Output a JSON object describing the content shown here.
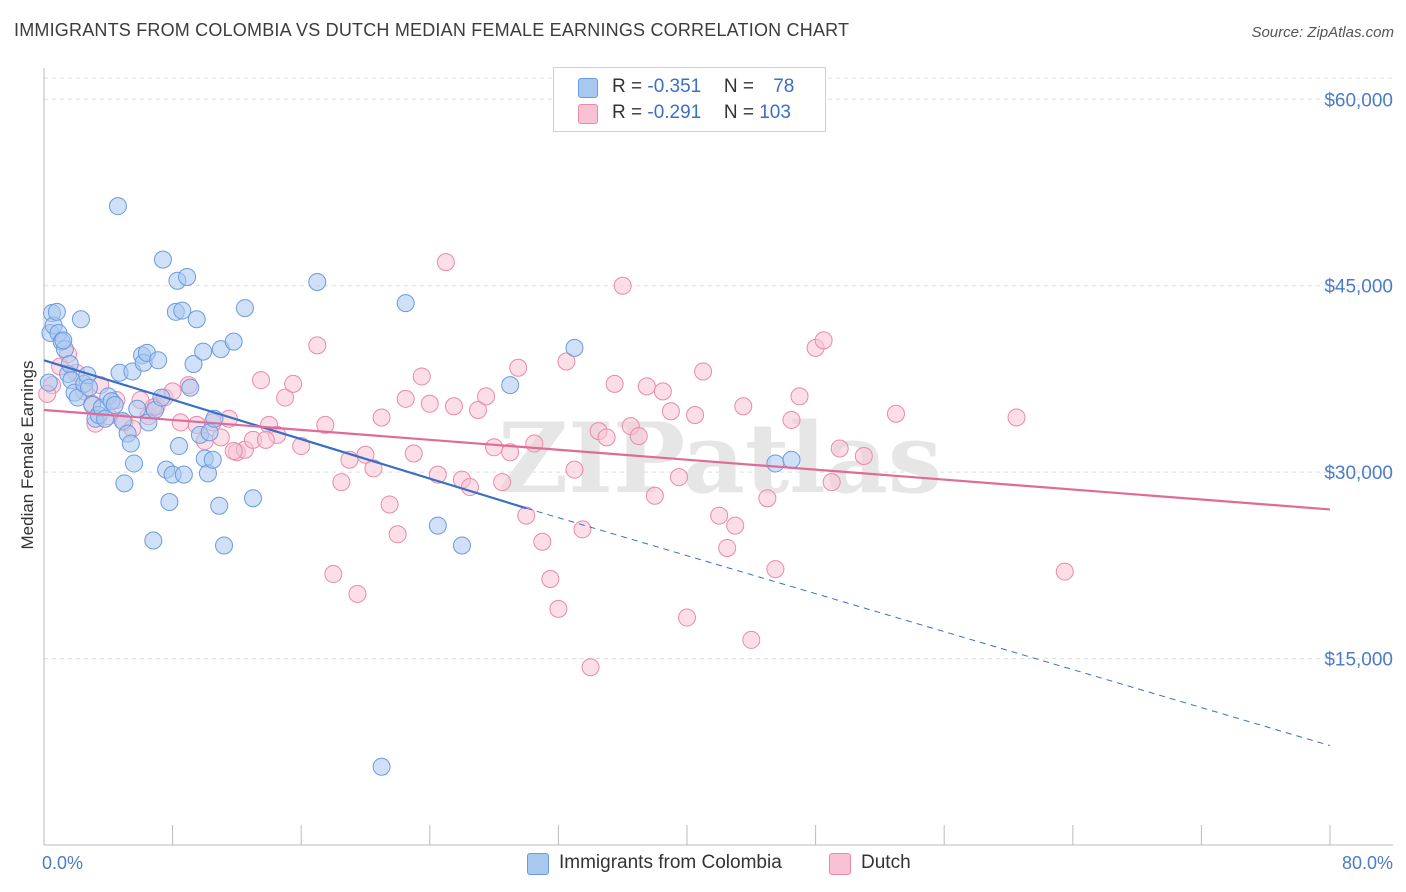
{
  "header": {
    "title": "IMMIGRANTS FROM COLOMBIA VS DUTCH MEDIAN FEMALE EARNINGS CORRELATION CHART",
    "source": "Source: ZipAtlas.com"
  },
  "watermark": "ZIPatlas",
  "legend": {
    "rows": [
      {
        "r_label": "R = ",
        "r_value": "-0.351",
        "n_label": "N = ",
        "n_value": "78",
        "color": "#a9c8f0",
        "border": "#6a9be0"
      },
      {
        "r_label": "R = ",
        "r_value": "-0.291",
        "n_label": "N = ",
        "n_value": "103",
        "color": "#f9c2d4",
        "border": "#e98aab"
      }
    ]
  },
  "bottom_legend": [
    {
      "label": "Immigrants from Colombia",
      "color": "#a9c8f0",
      "border": "#6a9be0"
    },
    {
      "label": "Dutch",
      "color": "#f9c2d4",
      "border": "#e98aab"
    }
  ],
  "chart_data": {
    "type": "scatter",
    "title": "IMMIGRANTS FROM COLOMBIA VS DUTCH MEDIAN FEMALE EARNINGS CORRELATION CHART",
    "xlabel": "",
    "ylabel": "Median Female Earnings",
    "xlim": [
      0,
      80
    ],
    "ylim": [
      0,
      63000
    ],
    "x_tick_labels": [
      {
        "value": 0,
        "label": "0.0%"
      },
      {
        "value": 80,
        "label": "80.0%"
      }
    ],
    "y_ticks": [
      {
        "value": 15000,
        "label": "$15,000"
      },
      {
        "value": 30000,
        "label": "$30,000"
      },
      {
        "value": 45000,
        "label": "$45,000"
      },
      {
        "value": 60000,
        "label": "$60,000"
      }
    ],
    "grid": true,
    "series": [
      {
        "name": "Immigrants from Colombia",
        "color": "#6a9be0",
        "fill": "#a9c8f0",
        "trend": {
          "x1": 0,
          "y1": 39000,
          "x2": 30,
          "y2": 27100,
          "dashed_to_x": 80,
          "dashed_to_y": 8000,
          "color": "#3a6fc4"
        },
        "points": [
          [
            0.3,
            37200
          ],
          [
            0.4,
            41200
          ],
          [
            0.5,
            42800
          ],
          [
            0.6,
            41800
          ],
          [
            0.8,
            42900
          ],
          [
            0.9,
            41200
          ],
          [
            1.1,
            40500
          ],
          [
            1.3,
            39900
          ],
          [
            1.5,
            37900
          ],
          [
            1.6,
            38700
          ],
          [
            1.7,
            37400
          ],
          [
            1.9,
            36400
          ],
          [
            2.1,
            36000
          ],
          [
            2.3,
            42300
          ],
          [
            2.5,
            37100
          ],
          [
            2.7,
            37800
          ],
          [
            2.8,
            36800
          ],
          [
            3.0,
            35400
          ],
          [
            3.2,
            34300
          ],
          [
            3.4,
            34600
          ],
          [
            3.6,
            35200
          ],
          [
            3.8,
            34300
          ],
          [
            4.0,
            36100
          ],
          [
            4.2,
            35700
          ],
          [
            4.4,
            35400
          ],
          [
            4.6,
            51400
          ],
          [
            4.7,
            38000
          ],
          [
            4.9,
            34100
          ],
          [
            5.0,
            29100
          ],
          [
            5.2,
            33100
          ],
          [
            5.4,
            32300
          ],
          [
            5.5,
            38100
          ],
          [
            5.6,
            30700
          ],
          [
            5.8,
            35100
          ],
          [
            6.1,
            39400
          ],
          [
            6.2,
            38800
          ],
          [
            6.4,
            39600
          ],
          [
            6.5,
            34000
          ],
          [
            6.8,
            24500
          ],
          [
            6.9,
            35000
          ],
          [
            7.1,
            39000
          ],
          [
            7.3,
            36000
          ],
          [
            7.4,
            47100
          ],
          [
            7.6,
            30200
          ],
          [
            7.8,
            27600
          ],
          [
            8.0,
            29800
          ],
          [
            8.2,
            42900
          ],
          [
            8.3,
            45400
          ],
          [
            8.4,
            32100
          ],
          [
            8.6,
            43000
          ],
          [
            8.7,
            29800
          ],
          [
            8.9,
            45700
          ],
          [
            9.1,
            36800
          ],
          [
            9.3,
            38700
          ],
          [
            9.5,
            42300
          ],
          [
            9.7,
            33000
          ],
          [
            9.9,
            39700
          ],
          [
            10.0,
            31100
          ],
          [
            10.2,
            29900
          ],
          [
            10.3,
            33200
          ],
          [
            10.5,
            31000
          ],
          [
            10.6,
            34300
          ],
          [
            10.9,
            27300
          ],
          [
            11.0,
            39900
          ],
          [
            11.2,
            24100
          ],
          [
            11.8,
            40500
          ],
          [
            12.5,
            43200
          ],
          [
            13.0,
            27900
          ],
          [
            17.0,
            45300
          ],
          [
            21.0,
            6300
          ],
          [
            22.5,
            43600
          ],
          [
            24.5,
            25700
          ],
          [
            26.0,
            24100
          ],
          [
            29.0,
            37000
          ],
          [
            33.0,
            40000
          ],
          [
            45.5,
            30700
          ],
          [
            46.5,
            31000
          ],
          [
            1.2,
            40600
          ]
        ]
      },
      {
        "name": "Dutch",
        "color": "#e98aab",
        "fill": "#f9c2d4",
        "trend": {
          "x1": 0,
          "y1": 35000,
          "x2": 80,
          "y2": 27000,
          "color": "#e06b98"
        },
        "points": [
          [
            0.5,
            37000
          ],
          [
            1.0,
            38500
          ],
          [
            1.5,
            39500
          ],
          [
            2.0,
            38000
          ],
          [
            2.5,
            36500
          ],
          [
            3.0,
            35500
          ],
          [
            3.5,
            37000
          ],
          [
            4.0,
            34500
          ],
          [
            4.5,
            35800
          ],
          [
            5.0,
            34000
          ],
          [
            5.5,
            33500
          ],
          [
            6.0,
            35800
          ],
          [
            6.5,
            34500
          ],
          [
            7.0,
            35300
          ],
          [
            7.5,
            36000
          ],
          [
            8.0,
            36500
          ],
          [
            8.5,
            34000
          ],
          [
            9.0,
            37000
          ],
          [
            9.5,
            33800
          ],
          [
            10.0,
            32500
          ],
          [
            10.5,
            34000
          ],
          [
            11.0,
            32800
          ],
          [
            11.5,
            34300
          ],
          [
            12.0,
            31600
          ],
          [
            12.5,
            31800
          ],
          [
            13.0,
            32600
          ],
          [
            13.5,
            37400
          ],
          [
            14.0,
            33800
          ],
          [
            14.5,
            33000
          ],
          [
            15.0,
            36000
          ],
          [
            15.5,
            37100
          ],
          [
            16.0,
            32100
          ],
          [
            17.0,
            40200
          ],
          [
            17.5,
            33800
          ],
          [
            18.0,
            21800
          ],
          [
            18.5,
            29200
          ],
          [
            19.0,
            31000
          ],
          [
            19.5,
            20200
          ],
          [
            20.0,
            31400
          ],
          [
            20.5,
            30300
          ],
          [
            21.0,
            34400
          ],
          [
            21.5,
            27400
          ],
          [
            22.0,
            25000
          ],
          [
            22.5,
            35900
          ],
          [
            23.0,
            31500
          ],
          [
            23.5,
            37700
          ],
          [
            24.0,
            35500
          ],
          [
            24.5,
            29800
          ],
          [
            25.0,
            46900
          ],
          [
            25.5,
            35300
          ],
          [
            26.0,
            29400
          ],
          [
            26.5,
            28800
          ],
          [
            27.0,
            35000
          ],
          [
            27.5,
            36100
          ],
          [
            28.0,
            32000
          ],
          [
            28.5,
            29200
          ],
          [
            29.0,
            31600
          ],
          [
            29.5,
            38400
          ],
          [
            30.0,
            26500
          ],
          [
            30.5,
            32300
          ],
          [
            31.0,
            24400
          ],
          [
            31.5,
            21400
          ],
          [
            32.0,
            19000
          ],
          [
            32.5,
            38900
          ],
          [
            33.0,
            30200
          ],
          [
            33.5,
            25400
          ],
          [
            34.0,
            14300
          ],
          [
            34.5,
            33300
          ],
          [
            35.0,
            32800
          ],
          [
            35.5,
            37100
          ],
          [
            36.0,
            45000
          ],
          [
            36.5,
            33700
          ],
          [
            37.0,
            32900
          ],
          [
            37.5,
            36900
          ],
          [
            38.0,
            28100
          ],
          [
            38.5,
            36500
          ],
          [
            39.0,
            34900
          ],
          [
            39.5,
            29600
          ],
          [
            40.0,
            18300
          ],
          [
            40.5,
            34600
          ],
          [
            41.0,
            38100
          ],
          [
            42.0,
            26500
          ],
          [
            42.5,
            23900
          ],
          [
            43.0,
            25700
          ],
          [
            43.5,
            35300
          ],
          [
            44.0,
            16500
          ],
          [
            45.0,
            27900
          ],
          [
            45.5,
            22200
          ],
          [
            46.5,
            34200
          ],
          [
            47.0,
            36100
          ],
          [
            48.0,
            40000
          ],
          [
            48.5,
            40600
          ],
          [
            49.0,
            29200
          ],
          [
            49.5,
            31900
          ],
          [
            51.0,
            31300
          ],
          [
            53.0,
            34700
          ],
          [
            63.5,
            22000
          ],
          [
            60.5,
            34400
          ],
          [
            11.8,
            31700
          ],
          [
            13.8,
            32600
          ],
          [
            0.2,
            36300
          ],
          [
            3.2,
            33900
          ],
          [
            6.8,
            35200
          ]
        ]
      }
    ]
  }
}
